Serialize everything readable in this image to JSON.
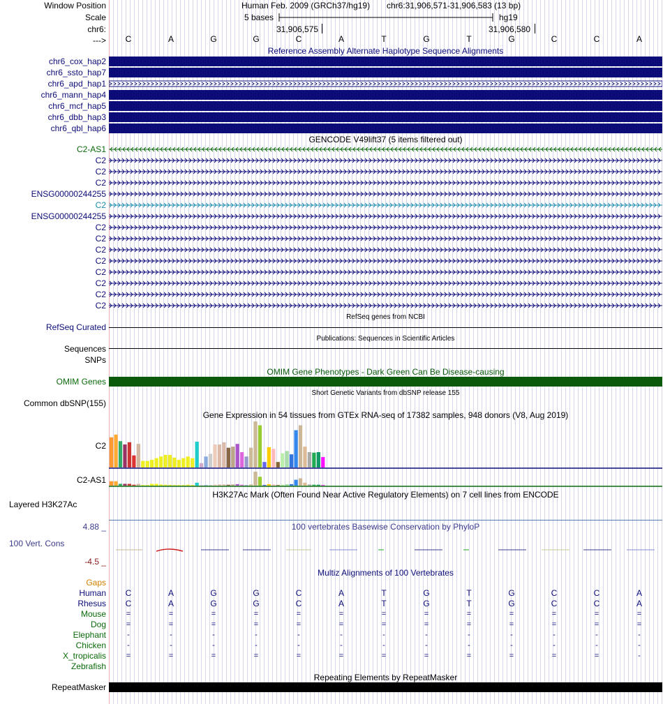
{
  "colors": {
    "nav": "#0c0c78",
    "hap_fill": "#0c0c78",
    "gencode_green": "#0a6a0a",
    "gencode_cyan": "#1c8cb0",
    "omim": "#0b5a0b",
    "cons_label": "#3c3c8c",
    "gaps_label": "#d08000",
    "species_green": "#0a6a0a",
    "grid_line": "#d6d6ec",
    "grid_red": "#e6b4b4"
  },
  "header": {
    "window_position_label": "Window Position",
    "scale_label": "Scale",
    "chrom_label": "chr6:",
    "arrow_label": "--->",
    "assembly": "Human Feb. 2009 (GRCh37/hg19)",
    "position": "chr6:31,906,571-31,906,583 (13 bp)",
    "scale_text": "5 bases",
    "db_label": "hg19",
    "coord_left": "31,906,575",
    "coord_right": "31,906,580"
  },
  "sequence": [
    "C",
    "A",
    "G",
    "G",
    "C",
    "A",
    "T",
    "G",
    "T",
    "G",
    "C",
    "C",
    "A"
  ],
  "alt_haplotypes": {
    "title": "Reference Assembly Alternate Haplotype Sequence Alignments",
    "items": [
      {
        "label": "chr6_cox_hap2",
        "style": "solid"
      },
      {
        "label": "chr6_ssto_hap7",
        "style": "solid"
      },
      {
        "label": "chr6_apd_hap1",
        "style": "arrows"
      },
      {
        "label": "chr6_mann_hap4",
        "style": "solid"
      },
      {
        "label": "chr6_mcf_hap5",
        "style": "solid"
      },
      {
        "label": "chr6_dbb_hap3",
        "style": "solid"
      },
      {
        "label": "chr6_qbl_hap6",
        "style": "solid"
      }
    ]
  },
  "gencode": {
    "title": "GENCODE V49lift37 (5 items filtered out)",
    "items": [
      {
        "label": "C2-AS1",
        "dir": "left",
        "color": "green"
      },
      {
        "label": "C2",
        "dir": "right",
        "color": "nav"
      },
      {
        "label": "C2",
        "dir": "right",
        "color": "nav"
      },
      {
        "label": "C2",
        "dir": "right",
        "color": "nav"
      },
      {
        "label": "ENSG00000244255",
        "dir": "right",
        "color": "nav"
      },
      {
        "label": "C2",
        "dir": "right",
        "color": "cyan"
      },
      {
        "label": "ENSG00000244255",
        "dir": "right",
        "color": "nav"
      },
      {
        "label": "C2",
        "dir": "right",
        "color": "nav"
      },
      {
        "label": "C2",
        "dir": "right",
        "color": "nav"
      },
      {
        "label": "C2",
        "dir": "right",
        "color": "nav"
      },
      {
        "label": "C2",
        "dir": "right",
        "color": "nav"
      },
      {
        "label": "C2",
        "dir": "right",
        "color": "nav"
      },
      {
        "label": "C2",
        "dir": "right",
        "color": "nav"
      },
      {
        "label": "C2",
        "dir": "right",
        "color": "nav"
      },
      {
        "label": "C2",
        "dir": "right",
        "color": "nav"
      }
    ]
  },
  "refseq": {
    "title": "RefSeq genes from NCBI",
    "label": "RefSeq Curated"
  },
  "publications": {
    "title": "Publications: Sequences in Scientific Articles",
    "label1": "Sequences",
    "label2": "SNPs"
  },
  "omim": {
    "title": "OMIM Gene Phenotypes - Dark Green Can Be Disease-causing",
    "label": "OMIM Genes"
  },
  "dbsnp": {
    "title": "Short Genetic Variants from dbSNP release 155",
    "label": "Common dbSNP(155)"
  },
  "gtex": {
    "title": "Gene Expression in 54 tissues from GTEx RNA-seq of 17382 samples, 948 donors (V8, Aug 2019)",
    "genes": [
      {
        "label": "C2",
        "values": [
          0.55,
          0.6,
          0.48,
          0.42,
          0.46,
          0.22,
          0.43,
          0.12,
          0.12,
          0.14,
          0.17,
          0.2,
          0.23,
          0.23,
          0.18,
          0.14,
          0.17,
          0.2,
          0.17,
          0.47,
          0.08,
          0.2,
          0.25,
          0.42,
          0.42,
          0.46,
          0.36,
          0.38,
          0.43,
          0.28,
          0.2,
          0.36,
          0.84,
          0.77,
          0.1,
          0.37,
          0.34,
          0.1,
          0.26,
          0.3,
          0.24,
          0.68,
          0.77,
          0.38,
          0.28,
          0.27,
          0.28,
          0.19
        ],
        "max_value": 0.84
      },
      {
        "label": "C2-AS1",
        "values": [
          0.3,
          0.3,
          0.12,
          0.12,
          0.12,
          0.06,
          0.12,
          0.04,
          0.04,
          0.12,
          0.12,
          0.08,
          0.06,
          0.05,
          0.04,
          0.04,
          0.04,
          0.06,
          0.04,
          0.2,
          0.03,
          0.04,
          0.05,
          0.07,
          0.08,
          0.08,
          0.06,
          0.08,
          0.1,
          0.06,
          0.04,
          0.08,
          0.95,
          0.6,
          0.05,
          0.1,
          0.08,
          0.04,
          0.06,
          0.1,
          0.1,
          0.4,
          0.5,
          0.2,
          0.08,
          0.06,
          0.06,
          0.04
        ],
        "max_value": 0.95
      }
    ],
    "tissue_colors": [
      "#ff9a33",
      "#ffaa33",
      "#33aa66",
      "#993366",
      "#cc3333",
      "#dd3333",
      "#d2b6a0",
      "#eeee22",
      "#eeee22",
      "#eeee22",
      "#eeee22",
      "#eeee22",
      "#eeee22",
      "#eeee22",
      "#eeee22",
      "#eeee22",
      "#eeee22",
      "#eeee22",
      "#eeee22",
      "#1fcccc",
      "#ccaacc",
      "#88aadd",
      "#cccccc",
      "#eeccbb",
      "#ddbbaa",
      "#ddbbaa",
      "#886644",
      "#bba688",
      "#aa55cc",
      "#dd66dd",
      "#9999cc",
      "#ccbb99",
      "#ccb898",
      "#99cc33",
      "#6666ee",
      "#ffcc00",
      "#ffbbbb",
      "#886633",
      "#bbeeaa",
      "#aaddaa",
      "#3377dd",
      "#3388ee",
      "#ccb898",
      "#ddbb99",
      "#aaaaaa",
      "#22aa55",
      "#119966",
      "#ff11ff"
    ]
  },
  "h3k27ac": {
    "title": "H3K27Ac Mark (Often Found Near Active Regulatory Elements) on 7 cell lines from ENCODE",
    "label": "Layered H3K27Ac"
  },
  "conservation": {
    "title": "100 vertebrates Basewise Conservation by PhyloP",
    "label": "100 Vert. Cons",
    "max_label": "4.88 _",
    "min_label": "-4.5 _"
  },
  "multiz": {
    "title": "Multiz Alignments of 100 Vertebrates",
    "gaps_label": "Gaps",
    "species": [
      {
        "name": "Human",
        "color": "nav",
        "row": [
          "C",
          "A",
          "G",
          "G",
          "C",
          "A",
          "T",
          "G",
          "T",
          "G",
          "C",
          "C",
          "A"
        ]
      },
      {
        "name": "Rhesus",
        "color": "nav",
        "row": [
          "C",
          "A",
          "G",
          "G",
          "C",
          "A",
          "T",
          "G",
          "T",
          "G",
          "C",
          "C",
          "A"
        ]
      },
      {
        "name": "Mouse",
        "color": "green",
        "row": [
          "=",
          "=",
          "=",
          "=",
          "=",
          "=",
          "=",
          "=",
          "=",
          "=",
          "=",
          "=",
          "="
        ]
      },
      {
        "name": "Dog",
        "color": "green",
        "row": [
          "=",
          "=",
          "=",
          "=",
          "=",
          "=",
          "=",
          "=",
          "=",
          "=",
          "=",
          "=",
          "="
        ]
      },
      {
        "name": "Elephant",
        "color": "green",
        "row": [
          "-",
          "-",
          "-",
          "-",
          "-",
          "-",
          "-",
          "-",
          "-",
          "-",
          "-",
          "-",
          "-"
        ]
      },
      {
        "name": "Chicken",
        "color": "green",
        "row": [
          "-",
          "-",
          "-",
          "-",
          "-",
          "-",
          "-",
          "-",
          "-",
          "-",
          "-",
          "-",
          "-"
        ]
      },
      {
        "name": "X_tropicalis",
        "color": "green",
        "row": [
          "=",
          "=",
          "=",
          "=",
          "=",
          "=",
          "=",
          "=",
          "=",
          "=",
          "=",
          "=",
          "-"
        ]
      },
      {
        "name": "Zebrafish",
        "color": "green",
        "row": [
          "",
          "",
          "",
          "",
          "",
          "",
          "",
          "",
          "",
          "",
          "",
          "",
          ""
        ]
      }
    ]
  },
  "repeatmasker": {
    "title": "Repeating Elements by RepeatMasker",
    "label": "RepeatMasker"
  }
}
